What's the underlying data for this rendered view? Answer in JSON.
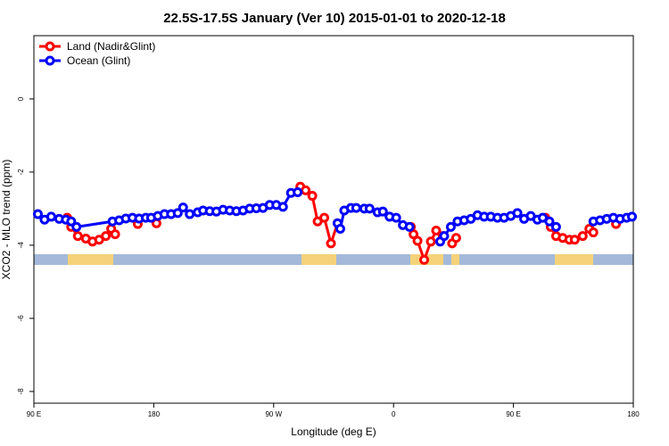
{
  "chart_data": {
    "type": "line",
    "title": "22.5S-17.5S January (Ver 10)   2015-01-01 to 2020-12-18",
    "x_label": "Longitude (deg E)",
    "y_label": "XCO2 - MLO trend (ppm)",
    "xlim": [
      90,
      540
    ],
    "ylim": [
      -8.32,
      1.73
    ],
    "xticks": [
      {
        "value": 90,
        "label": "90 E"
      },
      180,
      {
        "value": 270,
        "label": "90 W"
      },
      {
        "value": 360,
        "label": "0"
      },
      {
        "value": 450,
        "label": "90 E"
      },
      {
        "value": 540,
        "label": "180"
      }
    ],
    "yticks": [
      -8,
      -6,
      -4,
      -2,
      0
    ],
    "legend": "top-left",
    "grid": false,
    "series": [
      {
        "name": "Land (Nadir&Glint)",
        "color": "#ff0000",
        "x": [
          115,
          118,
          123,
          129,
          134,
          139,
          144,
          148,
          151,
          null,
          168,
          null,
          182,
          null,
          290,
          294,
          299,
          303,
          308,
          313,
          318,
          null,
          373,
          375,
          378,
          383,
          388,
          392,
          397,
          null,
          404,
          407,
          null,
          474,
          478,
          482,
          487,
          492,
          496,
          502,
          507,
          510,
          null,
          527
        ],
        "values": [
          -3.25,
          -3.5,
          -3.75,
          -3.82,
          -3.9,
          -3.85,
          -3.75,
          -3.55,
          -3.7,
          null,
          -3.42,
          null,
          -3.4,
          null,
          -2.4,
          -2.5,
          -2.65,
          -3.35,
          -3.25,
          -3.95,
          -3.4,
          null,
          -3.5,
          -3.7,
          -3.88,
          -4.4,
          -3.9,
          -3.6,
          -3.75,
          null,
          -3.95,
          -3.8,
          null,
          -3.25,
          -3.5,
          -3.75,
          -3.8,
          -3.85,
          -3.85,
          -3.75,
          -3.55,
          -3.65,
          null,
          -3.42
        ]
      },
      {
        "name": "Ocean (Glint)",
        "color": "#0000ff",
        "x": [
          93,
          98,
          103,
          109,
          114,
          118,
          122,
          149,
          154,
          159,
          164,
          169,
          174,
          178,
          183,
          188,
          193,
          198,
          202,
          207,
          213,
          217,
          222,
          227,
          232,
          237,
          242,
          247,
          252,
          257,
          262,
          267,
          272,
          277,
          283,
          288,
          null,
          318,
          320,
          323,
          328,
          332,
          338,
          342,
          348,
          352,
          357,
          362,
          367,
          372,
          null,
          395,
          398,
          403,
          408,
          413,
          418,
          423,
          428,
          433,
          438,
          443,
          448,
          453,
          458,
          463,
          468,
          472,
          477,
          482,
          null,
          510,
          515,
          520,
          525,
          530,
          535,
          539
        ],
        "values": [
          -3.15,
          -3.3,
          -3.22,
          -3.28,
          -3.3,
          -3.35,
          -3.5,
          -3.35,
          -3.32,
          -3.27,
          -3.25,
          -3.27,
          -3.25,
          -3.25,
          -3.2,
          -3.15,
          -3.15,
          -3.12,
          -2.97,
          -3.15,
          -3.1,
          -3.05,
          -3.07,
          -3.08,
          -3.03,
          -3.05,
          -3.07,
          -3.05,
          -3.0,
          -2.99,
          -2.98,
          -2.9,
          -2.9,
          -2.95,
          -2.57,
          -2.55,
          null,
          -3.4,
          -3.55,
          -3.05,
          -2.98,
          -2.98,
          -3.0,
          -3.0,
          -3.1,
          -3.08,
          -3.22,
          -3.25,
          -3.45,
          -3.5,
          null,
          -3.9,
          -3.75,
          -3.5,
          -3.35,
          -3.32,
          -3.28,
          -3.18,
          -3.22,
          -3.22,
          -3.25,
          -3.25,
          -3.2,
          -3.12,
          -3.28,
          -3.2,
          -3.3,
          -3.25,
          -3.35,
          -3.5,
          null,
          -3.35,
          -3.32,
          -3.28,
          -3.25,
          -3.28,
          -3.25,
          -3.22
        ]
      }
    ]
  }
}
